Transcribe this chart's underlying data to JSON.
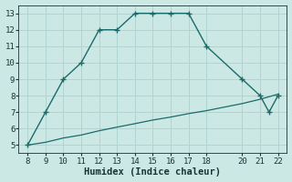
{
  "xlabel": "Humidex (Indice chaleur)",
  "background_color": "#cce8e4",
  "grid_color": "#b0d4d0",
  "line_color": "#1a6b6b",
  "xlim": [
    7.5,
    22.5
  ],
  "ylim": [
    4.5,
    13.5
  ],
  "xticks": [
    8,
    9,
    10,
    11,
    12,
    13,
    14,
    15,
    16,
    17,
    18,
    20,
    21,
    22
  ],
  "yticks": [
    5,
    6,
    7,
    8,
    9,
    10,
    11,
    12,
    13
  ],
  "line1_x": [
    8,
    9,
    10,
    11,
    12,
    13,
    14,
    15,
    16,
    17,
    18,
    20,
    21,
    21.5,
    22
  ],
  "line1_y": [
    5,
    7,
    9,
    10,
    12,
    12,
    13,
    13,
    13,
    13,
    11,
    9,
    8,
    7,
    8
  ],
  "line2_x": [
    8,
    9,
    10,
    11,
    12,
    13,
    14,
    15,
    16,
    17,
    18,
    20,
    21,
    22
  ],
  "line2_y": [
    5.0,
    5.17,
    5.43,
    5.61,
    5.87,
    6.09,
    6.3,
    6.52,
    6.7,
    6.91,
    7.09,
    7.52,
    7.78,
    8.09
  ]
}
